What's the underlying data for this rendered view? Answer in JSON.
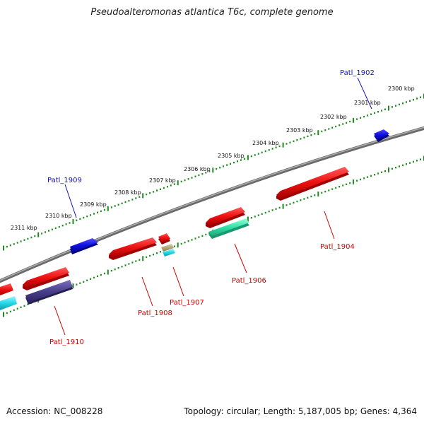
{
  "title": "Pseudoalteromonas atlantica T6c, complete genome",
  "footer": {
    "accession": "Accession: NC_008228",
    "topology": "Topology: circular; Length: 5,187,005 bp; Genes: 4,364"
  },
  "colors": {
    "backbone": "#808080",
    "ruler": "#1f8a1f",
    "forward_gene": "#ee1111",
    "reverse_gene": "#ee1111",
    "label_forward": "#1111bb",
    "label_reverse": "#cc0000",
    "cyan": "#22d8e8",
    "teal": "#33e0a8",
    "purple": "#4a3f8c",
    "blue": "#1111dd"
  },
  "ruler_labels": [
    "2300 kbp",
    "2301 kbp",
    "2302 kbp",
    "2303 kbp",
    "2304 kbp",
    "2305 kbp",
    "2306 kbp",
    "2307 kbp",
    "2308 kbp",
    "2309 kbp",
    "2310 kbp",
    "2311 kbp"
  ],
  "gene_labels": {
    "g1902": "Patl_1902",
    "g1909": "Patl_1909",
    "g1904": "Patl_1904",
    "g1906": "Patl_1906",
    "g1907": "Patl_1907",
    "g1908": "Patl_1908",
    "g1910": "Patl_1910"
  }
}
